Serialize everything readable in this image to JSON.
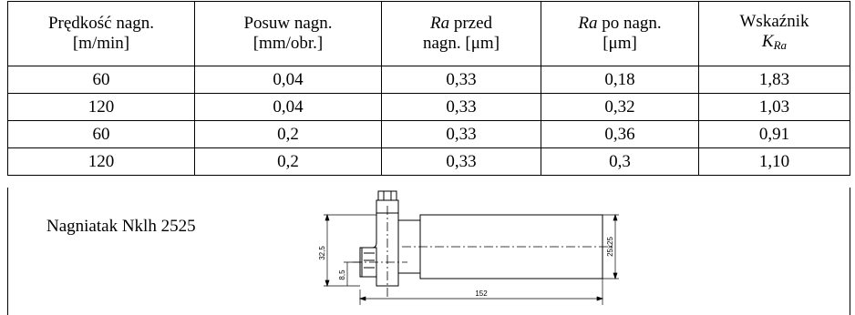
{
  "table": {
    "headers": [
      {
        "line1_pre": "",
        "line1_it": "",
        "line1_post": "Prędkość nagn.",
        "line2_pre": "[m/min]",
        "line2_it": "",
        "line2_sub": ""
      },
      {
        "line1_pre": "",
        "line1_it": "",
        "line1_post": "Posuw nagn.",
        "line2_pre": "[mm/obr.]",
        "line2_it": "",
        "line2_sub": ""
      },
      {
        "line1_pre": "",
        "line1_it": "Ra",
        "line1_post": " przed",
        "line2_pre": "nagn. [μm]",
        "line2_it": "",
        "line2_sub": ""
      },
      {
        "line1_pre": "",
        "line1_it": "Ra",
        "line1_post": " po nagn.",
        "line2_pre": "[μm]",
        "line2_it": "",
        "line2_sub": ""
      },
      {
        "line1_pre": "",
        "line1_it": "",
        "line1_post": "Wskaźnik",
        "line2_pre": "",
        "line2_it": "K",
        "line2_sub": "Ra"
      }
    ],
    "rows": [
      [
        "60",
        "0,04",
        "0,33",
        "0,18",
        "1,83"
      ],
      [
        "120",
        "0,04",
        "0,33",
        "0,32",
        "1,03"
      ],
      [
        "60",
        "0,2",
        "0,33",
        "0,36",
        "0,91"
      ],
      [
        "120",
        "0,2",
        "0,33",
        "0,3",
        "1,10"
      ]
    ]
  },
  "tool": {
    "name": "Nagniatak Nklh 2525",
    "dimensions": {
      "height": "32,5",
      "offset": "8,5",
      "section": "25x25",
      "length": "152"
    }
  }
}
